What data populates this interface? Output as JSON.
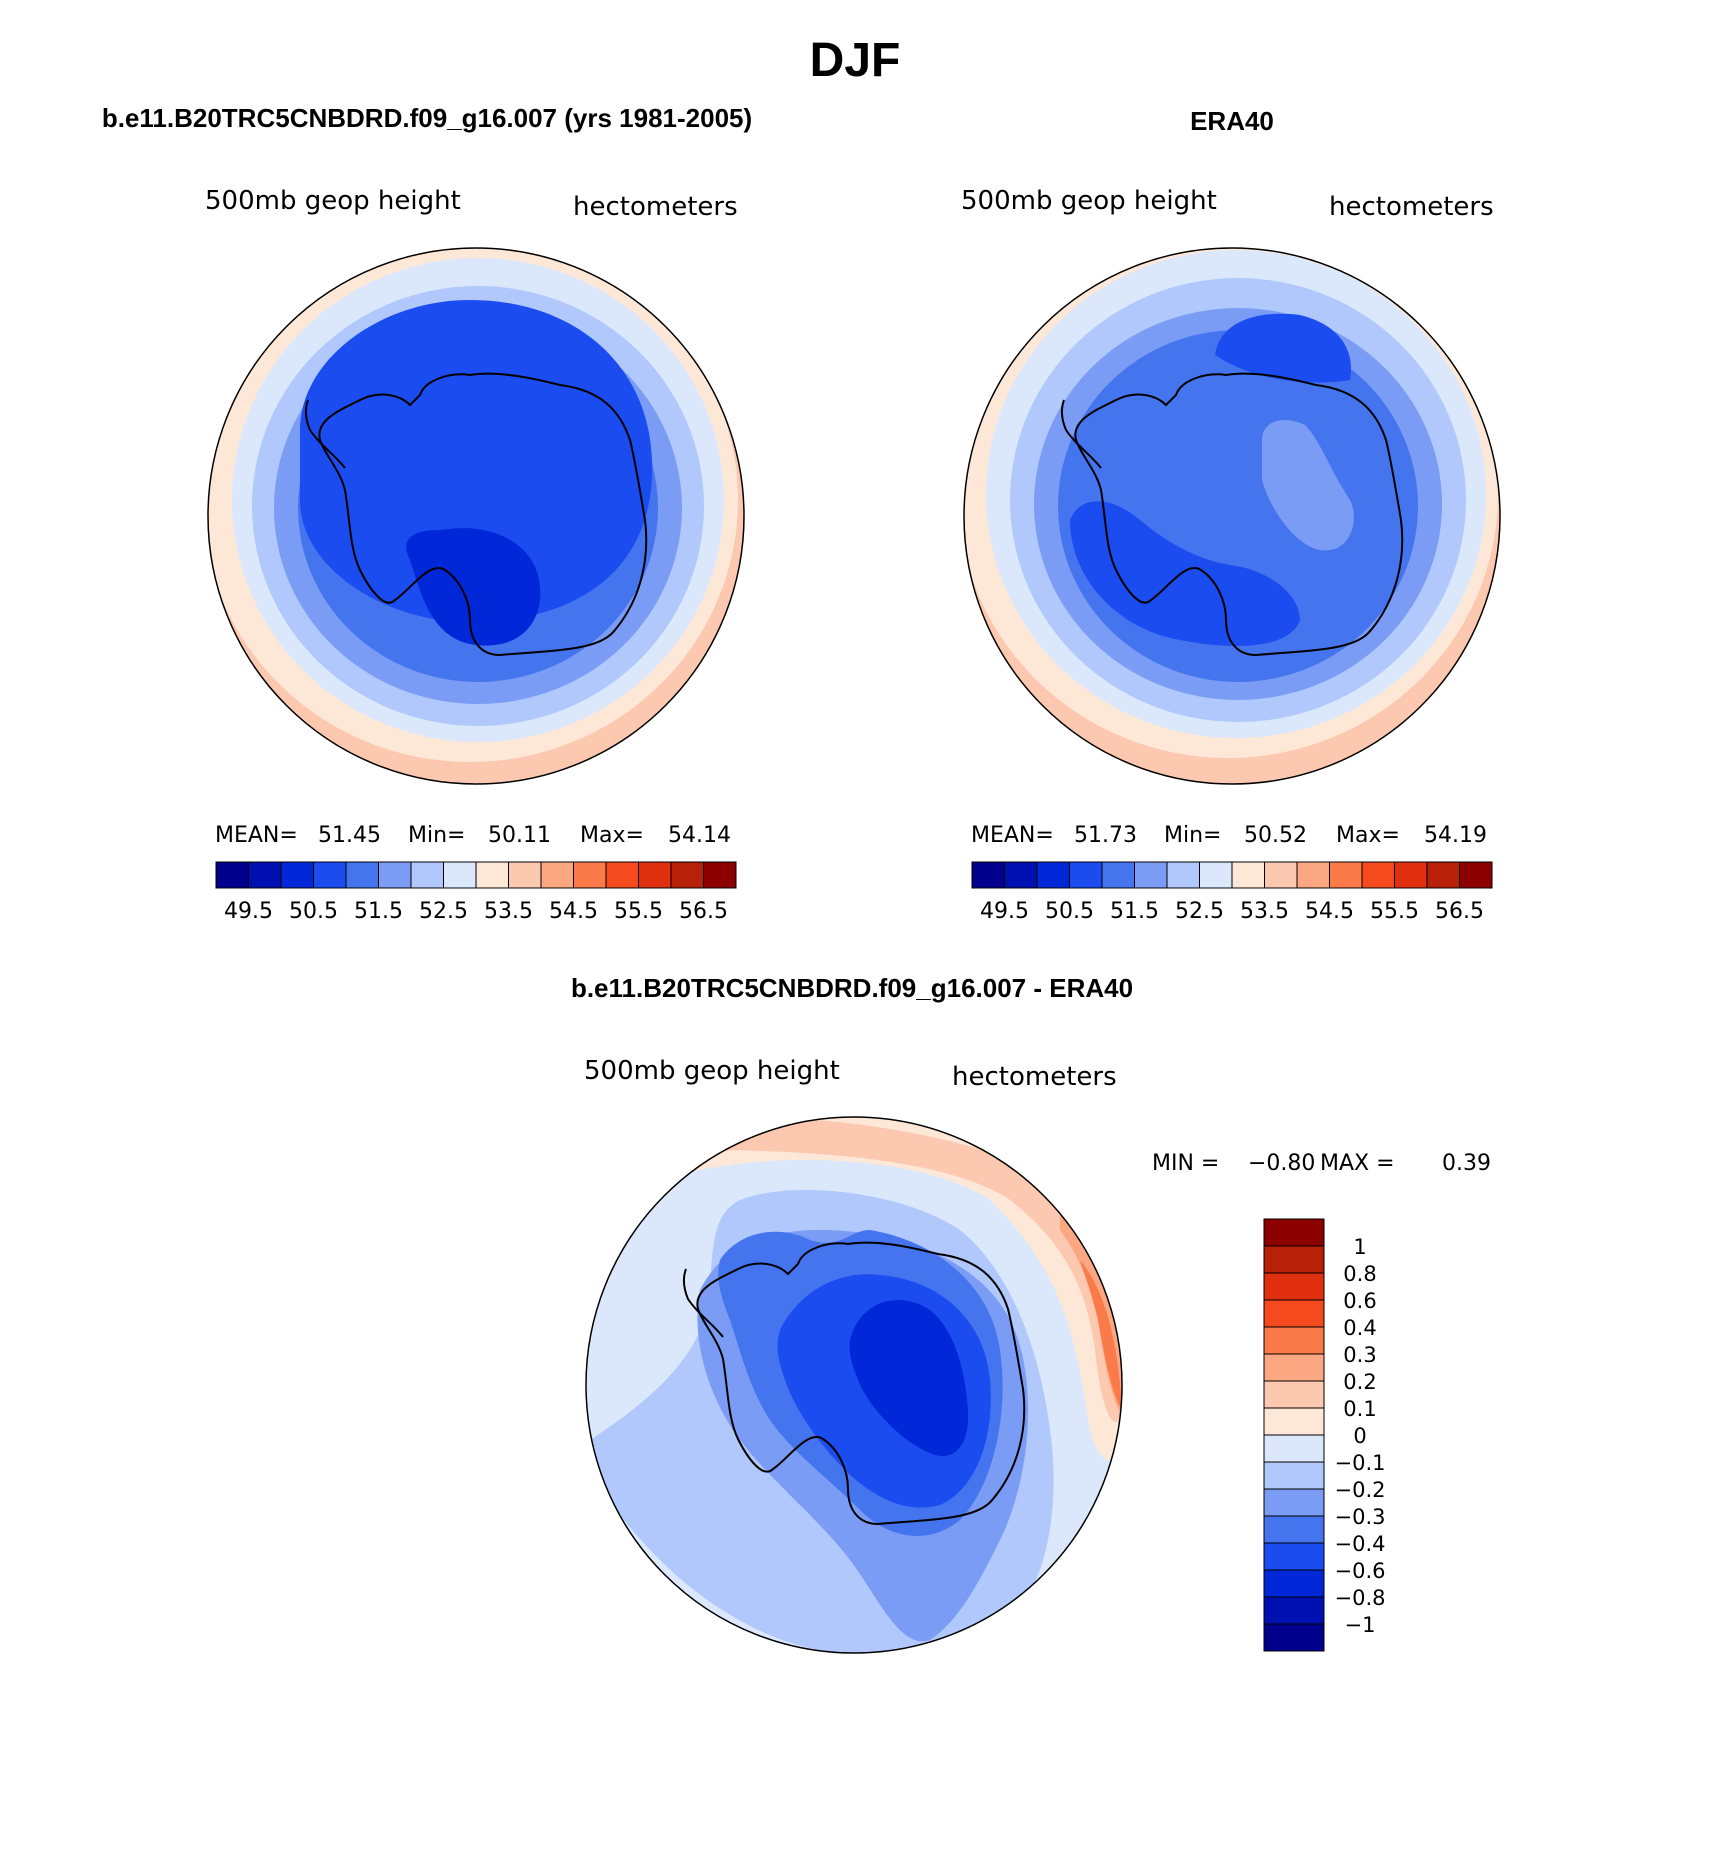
{
  "chart_data": {
    "type": "heatmap",
    "title": "DJF",
    "panels": [
      {
        "id": "model",
        "title": "b.e11.B20TRC5CNBDRD.f09_g16.007 (yrs 1981-2005)",
        "left_label": "500mb geop height",
        "right_label": "hectometers",
        "stats": {
          "mean_label": "MEAN=",
          "mean": "51.45",
          "min_label": "Min=",
          "min": "50.11",
          "max_label": "Max=",
          "max": "54.14"
        },
        "levels": [
          "49.5",
          "50.5",
          "51.5",
          "52.5",
          "53.5",
          "54.5",
          "55.5",
          "56.5"
        ],
        "colors": [
          "#00008c",
          "#0010b0",
          "#0028d8",
          "#1a4cf0",
          "#4575ee",
          "#7b9cf5",
          "#b0c8fb",
          "#dbe8fc",
          "#fde8d8",
          "#fcc8b0",
          "#fba882",
          "#fb7a4a",
          "#f54a1e",
          "#e03010",
          "#b82008",
          "#8c0000"
        ],
        "bands": [
          {
            "value": 53.5,
            "color": "#fde8d8"
          },
          {
            "value": 53.0,
            "color": "#dbe8fc"
          },
          {
            "value": 52.5,
            "color": "#b0c8fb"
          },
          {
            "value": 52.0,
            "color": "#7b9cf5"
          },
          {
            "value": 51.5,
            "color": "#4575ee"
          },
          {
            "value": 51.0,
            "color": "#1a4cf0"
          },
          {
            "value": 50.5,
            "color": "#0028d8"
          }
        ]
      },
      {
        "id": "obs",
        "title": "ERA40",
        "left_label": "500mb geop height",
        "right_label": "hectometers",
        "stats": {
          "mean_label": "MEAN=",
          "mean": "51.73",
          "min_label": "Min=",
          "min": "50.52",
          "max_label": "Max=",
          "max": "54.19"
        },
        "levels": [
          "49.5",
          "50.5",
          "51.5",
          "52.5",
          "53.5",
          "54.5",
          "55.5",
          "56.5"
        ],
        "colors": [
          "#00008c",
          "#0010b0",
          "#0028d8",
          "#1a4cf0",
          "#4575ee",
          "#7b9cf5",
          "#b0c8fb",
          "#dbe8fc",
          "#fde8d8",
          "#fcc8b0",
          "#fba882",
          "#fb7a4a",
          "#f54a1e",
          "#e03010",
          "#b82008",
          "#8c0000"
        ],
        "bands": [
          {
            "value": 53.5,
            "color": "#fde8d8"
          },
          {
            "value": 53.0,
            "color": "#dbe8fc"
          },
          {
            "value": 52.5,
            "color": "#b0c8fb"
          },
          {
            "value": 52.0,
            "color": "#7b9cf5"
          },
          {
            "value": 51.5,
            "color": "#4575ee"
          },
          {
            "value": 51.0,
            "color": "#1a4cf0"
          }
        ]
      },
      {
        "id": "diff",
        "title": "b.e11.B20TRC5CNBDRD.f09_g16.007 - ERA40",
        "left_label": "500mb geop height",
        "right_label": "hectometers",
        "stats": {
          "min_label": "MIN =",
          "min": "−0.80",
          "max_label": "MAX =",
          "max": "0.39"
        },
        "levels": [
          "1",
          "0.8",
          "0.6",
          "0.4",
          "0.3",
          "0.2",
          "0.1",
          "0",
          "−0.1",
          "−0.2",
          "−0.3",
          "−0.4",
          "−0.6",
          "−0.8",
          "−1"
        ],
        "colors": [
          "#8c0000",
          "#b82008",
          "#e03010",
          "#f54a1e",
          "#fb7a4a",
          "#fba882",
          "#fcc8b0",
          "#fde8d8",
          "#dbe8fc",
          "#b0c8fb",
          "#7b9cf5",
          "#4575ee",
          "#1a4cf0",
          "#0028d8",
          "#0010b0",
          "#00008c"
        ],
        "bands": [
          {
            "value": -0.15,
            "color": "#b0c8fb"
          },
          {
            "value": -0.25,
            "color": "#7b9cf5"
          },
          {
            "value": -0.35,
            "color": "#4575ee"
          },
          {
            "value": -0.5,
            "color": "#1a4cf0"
          },
          {
            "value": -0.7,
            "color": "#0028d8"
          }
        ]
      }
    ]
  }
}
